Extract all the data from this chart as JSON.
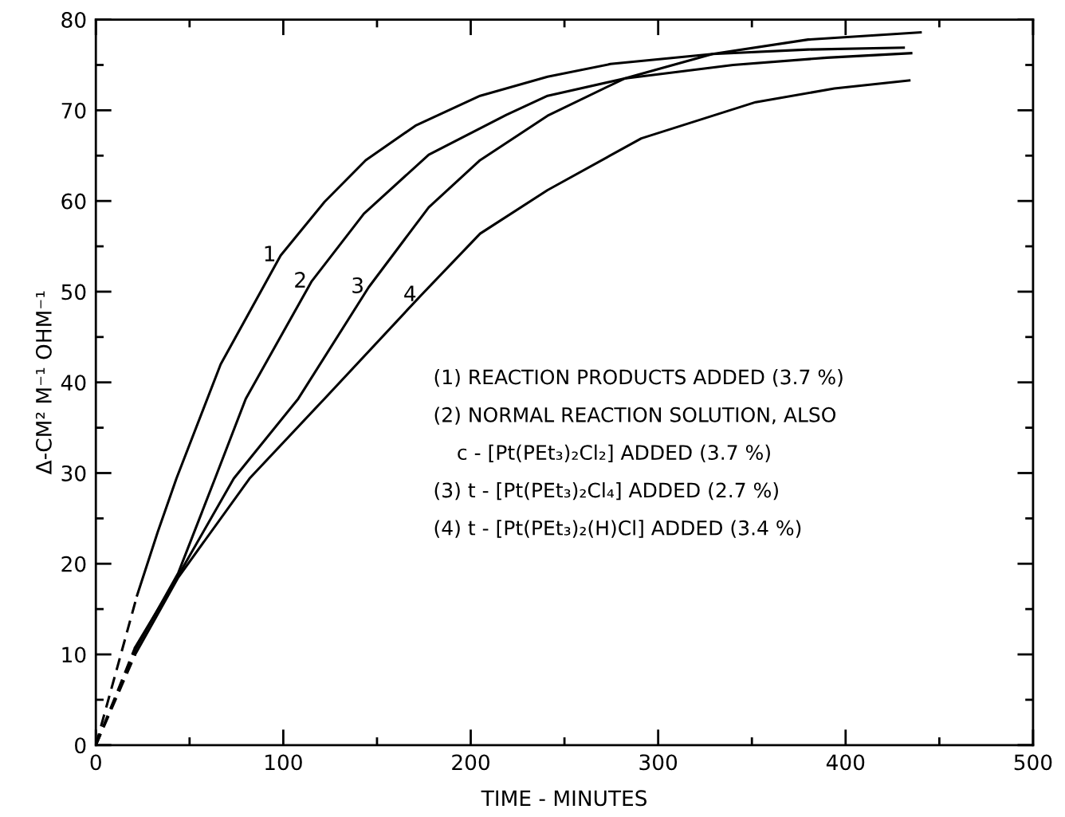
{
  "chart_data": {
    "type": "line",
    "xlabel": "TIME - MINUTES",
    "ylabel": "Δ-CM² M⁻¹ OHM⁻¹",
    "xlim": [
      0,
      500
    ],
    "ylim": [
      0,
      80
    ],
    "xticks": [
      0,
      {
        "value": 50,
        "label": null
      },
      100,
      {
        "value": 150,
        "label": null
      },
      200,
      {
        "value": 250,
        "label": null
      },
      300,
      {
        "value": 350,
        "label": null
      },
      400,
      {
        "value": 450,
        "label": null
      },
      500
    ],
    "yticks": [
      0,
      {
        "value": 5,
        "label": null
      },
      10,
      {
        "value": 15,
        "label": null
      },
      20,
      {
        "value": 25,
        "label": null
      },
      30,
      {
        "value": 35,
        "label": null
      },
      40,
      {
        "value": 45,
        "label": null
      },
      50,
      {
        "value": 55,
        "label": null
      },
      60,
      {
        "value": 65,
        "label": null
      },
      70,
      {
        "value": 75,
        "label": null
      },
      80
    ],
    "grid": false,
    "marker": "none",
    "series": [
      {
        "color": "#000000",
        "line_style": "dashed",
        "x": [
          0,
          22
        ],
        "values": [
          0,
          16.5
        ]
      },
      {
        "color": "#000000",
        "line_style": "dashed",
        "x": [
          0,
          21
        ],
        "values": [
          0,
          10.5
        ]
      },
      {
        "color": "#000000",
        "line_style": "dashed",
        "x": [
          0,
          21
        ],
        "values": [
          0,
          10.8
        ]
      },
      {
        "color": "#000000",
        "line_style": "dashed",
        "x": [
          0,
          21
        ],
        "values": [
          0,
          10.0
        ]
      },
      {
        "name": "1",
        "color": "#000000",
        "line_style": "solid",
        "x": [
          22,
          33,
          43,
          66.6,
          98.6,
          122,
          144,
          170.5,
          205,
          241,
          274.5,
          329,
          380,
          431
        ],
        "values": [
          16.5,
          23.5,
          29.4,
          42,
          54,
          59.9,
          64.5,
          68.3,
          71.6,
          73.7,
          75.1,
          76.2,
          76.7,
          76.9
        ]
      },
      {
        "name": "2",
        "color": "#000000",
        "line_style": "solid",
        "x": [
          21,
          44,
          63.6,
          80,
          115,
          143,
          177.6,
          219,
          241,
          282,
          340,
          390,
          435
        ],
        "values": [
          10.5,
          19,
          29.4,
          38.2,
          51.1,
          58.6,
          65.1,
          69.5,
          71.6,
          73.5,
          75,
          75.8,
          76.3
        ]
      },
      {
        "name": "3",
        "color": "#000000",
        "line_style": "solid",
        "x": [
          21,
          44,
          73.6,
          108,
          145.6,
          177.6,
          205,
          241,
          282,
          329,
          380,
          440
        ],
        "values": [
          10.8,
          18.7,
          29.4,
          38.2,
          50.5,
          59.3,
          64.5,
          69.4,
          73.5,
          76.2,
          77.8,
          78.6
        ]
      },
      {
        "name": "4",
        "color": "#000000",
        "line_style": "solid",
        "x": [
          21,
          44,
          82,
          122,
          173.5,
          205,
          241,
          291,
          352,
          394,
          434
        ],
        "values": [
          10.0,
          18.5,
          29.4,
          38.2,
          49.6,
          56.4,
          61.2,
          66.9,
          70.9,
          72.4,
          73.3
        ]
      }
    ],
    "annotations": [
      "(1) REACTION PRODUCTS ADDED (3.7 %)",
      "(2) NORMAL REACTION SOLUTION, ALSO",
      "c - [Pt(PEt₃)₂Cl₂] ADDED (3.7 %)",
      "(3) t - [Pt(PEt₃)₂Cl₄] ADDED (2.7 %)",
      "(4) t - [Pt(PEt₃)₂(H)Cl] ADDED (3.4 %)"
    ]
  }
}
